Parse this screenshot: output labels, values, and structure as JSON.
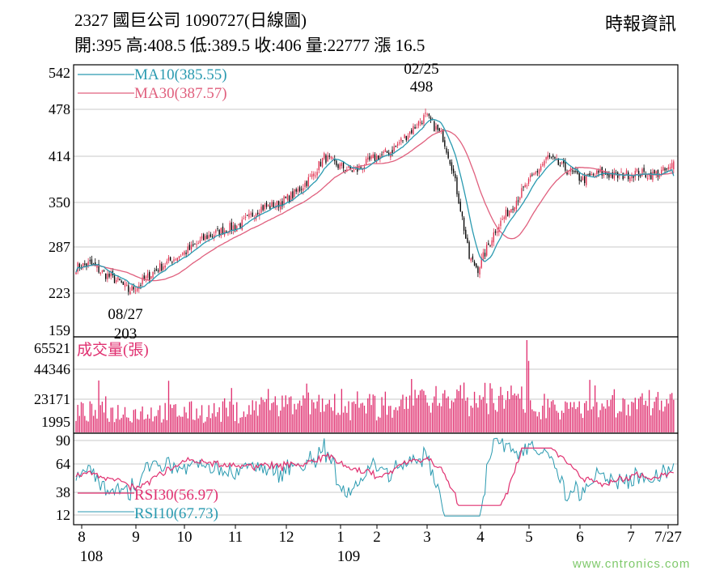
{
  "header": {
    "title": "2327  國巨公司 1090727(日線圖)",
    "stats": "開:395 高:408.5 低:389.5 收:406 量:22777 漲 16.5",
    "source": "時報資訊",
    "watermark": "www.cntronics.com"
  },
  "chart_data": [
    {
      "type": "candlestick",
      "title": "國巨公司 1090727(日線圖)",
      "ylim": [
        159,
        542
      ],
      "y_ticks": [
        "542",
        "478",
        "414",
        "350",
        "287",
        "223",
        "159"
      ],
      "legend": [
        {
          "label": "MA10(385.55)",
          "color": "#2a9ab0"
        },
        {
          "label": "MA30(387.57)",
          "color": "#e0607e"
        }
      ],
      "annotations": [
        {
          "date": "02/25",
          "value": "498"
        },
        {
          "date": "08/27",
          "value": "203"
        }
      ],
      "colors": {
        "up": "#e03050",
        "down": "#000000"
      },
      "anchors": [
        [
          0,
          257
        ],
        [
          8,
          262
        ],
        [
          16,
          248
        ],
        [
          25,
          236
        ],
        [
          30,
          224
        ],
        [
          36,
          232
        ],
        [
          45,
          252
        ],
        [
          55,
          268
        ],
        [
          65,
          282
        ],
        [
          75,
          300
        ],
        [
          85,
          310
        ],
        [
          95,
          318
        ],
        [
          105,
          340
        ],
        [
          115,
          345
        ],
        [
          125,
          360
        ],
        [
          135,
          385
        ],
        [
          142,
          412
        ],
        [
          150,
          400
        ],
        [
          160,
          392
        ],
        [
          170,
          410
        ],
        [
          180,
          420
        ],
        [
          190,
          445
        ],
        [
          200,
          470
        ],
        [
          210,
          440
        ],
        [
          215,
          400
        ],
        [
          220,
          340
        ],
        [
          225,
          270
        ],
        [
          230,
          255
        ],
        [
          240,
          310
        ],
        [
          250,
          345
        ],
        [
          260,
          380
        ],
        [
          270,
          412
        ],
        [
          280,
          395
        ],
        [
          290,
          380
        ],
        [
          300,
          390
        ],
        [
          310,
          385
        ],
        [
          320,
          390
        ],
        [
          330,
          387
        ],
        [
          340,
          395
        ],
        [
          342,
          406
        ]
      ],
      "ma10_final": 385.55,
      "ma30_final": 387.57
    },
    {
      "type": "bar",
      "title": "成交量(張)",
      "ylim": [
        0,
        65521
      ],
      "y_ticks": [
        "65521",
        "44346",
        "23171",
        "1995"
      ],
      "color": "#e03070",
      "last_volume": 22777
    },
    {
      "type": "line",
      "ylim": [
        0,
        100
      ],
      "y_ticks": [
        "90",
        "64",
        "38",
        "12"
      ],
      "legend": [
        {
          "label": "RSI30(56.97)",
          "color": "#e03070"
        },
        {
          "label": "RSI10(67.73)",
          "color": "#2a9ab0"
        }
      ],
      "rsi30_final": 56.97,
      "rsi10_final": 67.73
    }
  ],
  "x_axis": {
    "months": [
      "8",
      "9",
      "10",
      "11",
      "12",
      "1",
      "2",
      "3",
      "4",
      "5",
      "6",
      "7",
      "7/27"
    ],
    "years": [
      "108",
      "109"
    ],
    "total_days": 343
  }
}
